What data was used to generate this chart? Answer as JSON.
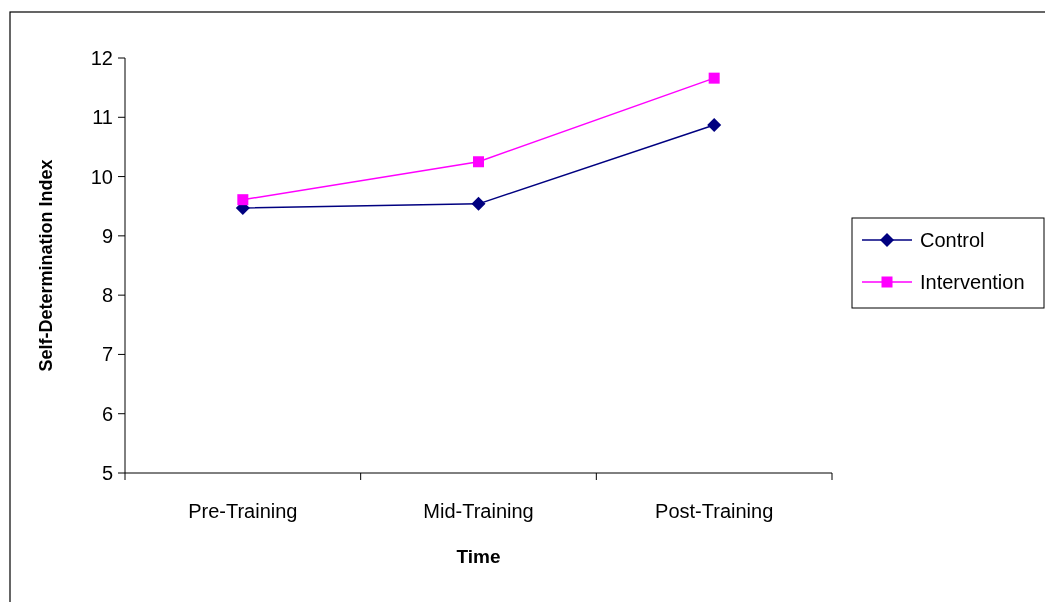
{
  "chart_data": {
    "type": "line",
    "xlabel": "Time",
    "ylabel": "Self-Determination Index",
    "categories": [
      "Pre-Training",
      "Mid-Training",
      "Post-Training"
    ],
    "series": [
      {
        "name": "Control",
        "color": "#000080",
        "values": [
          9.47,
          9.54,
          10.87
        ],
        "marker": "diamond"
      },
      {
        "name": "Intervention",
        "color": "#ff00ff",
        "values": [
          9.61,
          10.25,
          11.66
        ],
        "marker": "square"
      }
    ],
    "ylim": [
      5,
      12
    ],
    "yticks": [
      5,
      6,
      7,
      8,
      9,
      10,
      11,
      12
    ],
    "grid": false,
    "legend": "right",
    "line_style": "solid"
  }
}
